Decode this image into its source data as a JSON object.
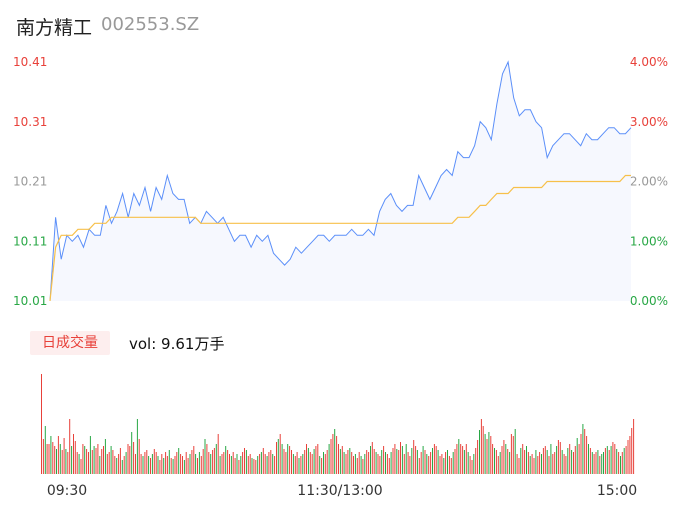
{
  "header": {
    "name": "南方精工",
    "code": "002553.SZ"
  },
  "volume_panel": {
    "tab_label": "日成交量",
    "vol_label": "vol: 9.61万手"
  },
  "colors": {
    "up": "#e8413a",
    "down": "#28a745",
    "price_line": "#5b8ff9",
    "avg_line": "#f7c04a",
    "neutral": "#999999"
  },
  "chart_data": [
    {
      "type": "line",
      "title": "",
      "y_left_ticks": [
        "10.41",
        "10.31",
        "10.21",
        "10.11",
        "10.01"
      ],
      "y_right_ticks": [
        "4.00%",
        "3.00%",
        "2.00%",
        "1.00%",
        "0.00%"
      ],
      "x_ticks": [
        "09:30",
        "11:30/13:00",
        "15:00"
      ],
      "ylim": [
        10.01,
        10.41
      ],
      "series": [
        {
          "values": [
            10.01,
            10.15,
            10.08,
            10.12,
            10.11,
            10.12,
            10.1,
            10.13,
            10.12,
            10.12,
            10.17,
            10.14,
            10.16,
            10.19,
            10.15,
            10.19,
            10.17,
            10.2,
            10.16,
            10.2,
            10.18,
            10.22,
            10.19,
            10.18,
            10.18,
            10.14,
            10.15,
            10.14,
            10.16,
            10.15,
            10.14,
            10.15,
            10.13,
            10.11,
            10.12,
            10.12,
            10.1,
            10.12,
            10.11,
            10.12,
            10.09,
            10.08,
            10.07,
            10.08,
            10.1,
            10.09,
            10.1,
            10.11,
            10.12,
            10.12,
            10.11,
            10.12,
            10.12,
            10.12,
            10.13,
            10.12,
            10.12,
            10.13,
            10.12,
            10.16,
            10.18,
            10.19,
            10.17,
            10.16,
            10.17,
            10.17,
            10.22,
            10.2,
            10.18,
            10.2,
            10.22,
            10.23,
            10.22,
            10.26,
            10.25,
            10.25,
            10.27,
            10.31,
            10.3,
            10.28,
            10.34,
            10.39,
            10.41,
            10.35,
            10.32,
            10.33,
            10.33,
            10.31,
            10.3,
            10.25,
            10.27,
            10.28,
            10.29,
            10.29,
            10.28,
            10.27,
            10.29,
            10.28,
            10.28,
            10.29,
            10.3,
            10.3,
            10.29,
            10.29,
            10.3
          ]
        },
        {
          "values": [
            10.01,
            10.1,
            10.12,
            10.12,
            10.12,
            10.13,
            10.13,
            10.13,
            10.14,
            10.14,
            10.14,
            10.15,
            10.15,
            10.15,
            10.15,
            10.15,
            10.15,
            10.15,
            10.15,
            10.15,
            10.15,
            10.15,
            10.15,
            10.15,
            10.15,
            10.15,
            10.15,
            10.14,
            10.14,
            10.14,
            10.14,
            10.14,
            10.14,
            10.14,
            10.14,
            10.14,
            10.14,
            10.14,
            10.14,
            10.14,
            10.14,
            10.14,
            10.14,
            10.14,
            10.14,
            10.14,
            10.14,
            10.14,
            10.14,
            10.14,
            10.14,
            10.14,
            10.14,
            10.14,
            10.14,
            10.14,
            10.14,
            10.14,
            10.14,
            10.14,
            10.14,
            10.14,
            10.14,
            10.14,
            10.14,
            10.14,
            10.14,
            10.14,
            10.14,
            10.14,
            10.14,
            10.14,
            10.14,
            10.15,
            10.15,
            10.15,
            10.16,
            10.17,
            10.17,
            10.18,
            10.19,
            10.19,
            10.19,
            10.2,
            10.2,
            10.2,
            10.2,
            10.2,
            10.2,
            10.21,
            10.21,
            10.21,
            10.21,
            10.21,
            10.21,
            10.21,
            10.21,
            10.21,
            10.21,
            10.21,
            10.21,
            10.21,
            10.21,
            10.22,
            10.22
          ]
        }
      ]
    },
    {
      "type": "bar",
      "title": "",
      "colors_per_bar": "red=up, green=down",
      "values": [
        100,
        35,
        48,
        30,
        30,
        38,
        32,
        28,
        25,
        38,
        30,
        24,
        36,
        25,
        22,
        55,
        28,
        40,
        33,
        22,
        20,
        15,
        30,
        28,
        25,
        22,
        38,
        24,
        28,
        26,
        30,
        18,
        25,
        28,
        35,
        20,
        22,
        28,
        24,
        18,
        16,
        20,
        26,
        14,
        18,
        22,
        30,
        28,
        42,
        32,
        20,
        55,
        35,
        20,
        18,
        22,
        24,
        18,
        16,
        20,
        25,
        22,
        18,
        14,
        20,
        16,
        22,
        18,
        24,
        16,
        15,
        18,
        22,
        26,
        20,
        18,
        14,
        22,
        16,
        20,
        24,
        28,
        20,
        16,
        22,
        18,
        25,
        35,
        30,
        22,
        20,
        24,
        26,
        30,
        40,
        18,
        20,
        22,
        28,
        24,
        20,
        18,
        22,
        16,
        20,
        14,
        18,
        22,
        26,
        24,
        18,
        20,
        16,
        15,
        14,
        18,
        20,
        22,
        26,
        20,
        18,
        22,
        24,
        20,
        18,
        32,
        35,
        40,
        30,
        25,
        22,
        30,
        28,
        24,
        20,
        18,
        22,
        16,
        18,
        20,
        24,
        30,
        26,
        22,
        20,
        25,
        28,
        30,
        18,
        16,
        22,
        20,
        24,
        30,
        35,
        40,
        45,
        38,
        30,
        25,
        28,
        22,
        20,
        24,
        26,
        22,
        18,
        20,
        16,
        22,
        18,
        15,
        20,
        24,
        22,
        28,
        32,
        25,
        22,
        20,
        18,
        24,
        28,
        22,
        20,
        16,
        22,
        26,
        30,
        25,
        24,
        32,
        28,
        20,
        30,
        22,
        18,
        26,
        34,
        28,
        24,
        16,
        22,
        28,
        24,
        20,
        18,
        22,
        26,
        30,
        28,
        24,
        18,
        20,
        16,
        22,
        24,
        18,
        16,
        22,
        25,
        30,
        35,
        30,
        28,
        24,
        30,
        22,
        18,
        14,
        20,
        26,
        34,
        44,
        55,
        48,
        40,
        35,
        42,
        38,
        30,
        26,
        24,
        18,
        22,
        28,
        34,
        30,
        25,
        22,
        40,
        38,
        45,
        20,
        16,
        26,
        30,
        24,
        28,
        22,
        18,
        20,
        16,
        24,
        18,
        22,
        20,
        26,
        28,
        24,
        18,
        30,
        20,
        22,
        28,
        34,
        32,
        24,
        20,
        18,
        26,
        30,
        24,
        22,
        28,
        36,
        30,
        40,
        50,
        45,
        38,
        30,
        26,
        22,
        20,
        22,
        24,
        18,
        20,
        22,
        26,
        28,
        24,
        28,
        32,
        30,
        25,
        22,
        18,
        22,
        26,
        28,
        34,
        38,
        46,
        55
      ],
      "bar_colors": [
        "u",
        "u",
        "d",
        "u",
        "u",
        "d",
        "u",
        "u",
        "d",
        "u",
        "d",
        "u",
        "u",
        "d",
        "u",
        "u",
        "d",
        "u",
        "u",
        "u",
        "d",
        "u",
        "u",
        "d",
        "u",
        "u",
        "d",
        "u",
        "d",
        "u",
        "u",
        "d",
        "u",
        "u",
        "d",
        "u",
        "u",
        "d",
        "u",
        "u",
        "d",
        "u",
        "u",
        "d",
        "u",
        "d",
        "u",
        "u",
        "d",
        "u",
        "u",
        "d",
        "u",
        "u",
        "d",
        "u",
        "u",
        "d",
        "u",
        "d",
        "u",
        "u",
        "d",
        "u",
        "u",
        "d",
        "u",
        "u",
        "d",
        "u",
        "d",
        "u",
        "u",
        "d",
        "u",
        "u",
        "d",
        "u",
        "u",
        "d",
        "u",
        "u",
        "d",
        "u",
        "d",
        "u",
        "u",
        "d",
        "u",
        "u",
        "d",
        "u",
        "u",
        "d",
        "u",
        "d",
        "u",
        "u",
        "d",
        "u",
        "u",
        "d",
        "u",
        "u",
        "d",
        "u",
        "d",
        "u",
        "u",
        "d",
        "u",
        "u",
        "d",
        "u",
        "u",
        "d",
        "u",
        "d",
        "u",
        "u",
        "d",
        "u",
        "u",
        "d",
        "u",
        "u",
        "d",
        "u",
        "d",
        "u",
        "u",
        "d",
        "u",
        "u",
        "d",
        "u",
        "u",
        "d",
        "u",
        "d",
        "u",
        "u",
        "d",
        "u",
        "u",
        "d",
        "u",
        "u",
        "d",
        "u",
        "d",
        "u",
        "u",
        "d",
        "u",
        "u",
        "d",
        "u",
        "u",
        "d",
        "u",
        "d",
        "u",
        "u",
        "d",
        "u",
        "u",
        "d",
        "u",
        "u",
        "d",
        "u",
        "d",
        "u",
        "u",
        "d",
        "u",
        "u",
        "d",
        "u",
        "u",
        "d",
        "u",
        "d",
        "u",
        "u",
        "d",
        "u",
        "u",
        "d",
        "u",
        "u",
        "d",
        "u",
        "d",
        "u",
        "u",
        "d",
        "u",
        "u",
        "d",
        "u",
        "u",
        "d",
        "u",
        "d",
        "u",
        "u",
        "d",
        "u",
        "u",
        "d",
        "u",
        "u",
        "d",
        "u",
        "d",
        "u",
        "u",
        "d",
        "u",
        "u",
        "d",
        "u",
        "u",
        "d",
        "u",
        "d",
        "u",
        "u",
        "d",
        "u",
        "u",
        "d",
        "u",
        "u",
        "d",
        "u",
        "d",
        "u",
        "u",
        "d",
        "u",
        "u",
        "d",
        "u",
        "u",
        "d",
        "u",
        "d",
        "u",
        "u",
        "d",
        "u",
        "u",
        "d",
        "u",
        "u",
        "d",
        "u",
        "d",
        "u",
        "u",
        "d",
        "u",
        "u",
        "d",
        "u",
        "u",
        "d",
        "u",
        "d",
        "u",
        "u",
        "d",
        "u",
        "u",
        "d",
        "u",
        "u",
        "d",
        "u",
        "d",
        "u",
        "u",
        "d",
        "u",
        "u",
        "d",
        "u",
        "u",
        "d",
        "u",
        "d",
        "u",
        "u",
        "d",
        "u",
        "d",
        "d",
        "u",
        "d",
        "u",
        "d",
        "u",
        "u",
        "d",
        "u",
        "d",
        "u",
        "d"
      ]
    }
  ]
}
